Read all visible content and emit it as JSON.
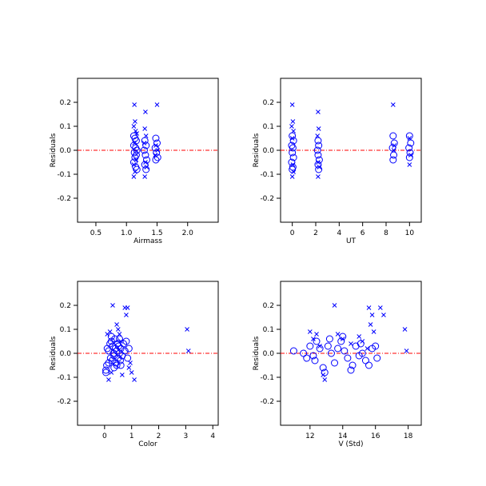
{
  "colors": {
    "marker": "#0000ff",
    "zero_line": "#ff0000",
    "axes": "#000000"
  },
  "chart_data": [
    {
      "type": "scatter",
      "xlabel": "Airmass",
      "ylabel": "Residuals",
      "xlim": [
        0.2,
        2.5
      ],
      "ylim": [
        -0.3,
        0.3
      ],
      "xticks": [
        0.5,
        1.0,
        1.5,
        2.0
      ],
      "xtick_labels": [
        "0.5",
        "1.0",
        "1.5",
        "2.0"
      ],
      "yticks": [
        -0.2,
        -0.1,
        0.0,
        0.1,
        0.2
      ],
      "ytick_labels": [
        "-0.2",
        "-0.1",
        "0.0",
        "0.1",
        "0.2"
      ],
      "zero_line": 0,
      "series": [
        {
          "marker": "circle",
          "points": [
            [
              1.12,
              0.06
            ],
            [
              1.14,
              0.05
            ],
            [
              1.16,
              0.04
            ],
            [
              1.12,
              0.02
            ],
            [
              1.15,
              0.01
            ],
            [
              1.17,
              0.0
            ],
            [
              1.13,
              -0.01
            ],
            [
              1.16,
              -0.02
            ],
            [
              1.14,
              -0.03
            ],
            [
              1.12,
              -0.05
            ],
            [
              1.15,
              -0.07
            ],
            [
              1.17,
              -0.08
            ],
            [
              1.3,
              0.04
            ],
            [
              1.32,
              0.02
            ],
            [
              1.29,
              0.0
            ],
            [
              1.31,
              -0.02
            ],
            [
              1.33,
              -0.04
            ],
            [
              1.3,
              -0.06
            ],
            [
              1.32,
              -0.08
            ],
            [
              1.48,
              0.05
            ],
            [
              1.5,
              0.03
            ],
            [
              1.47,
              0.01
            ],
            [
              1.49,
              -0.01
            ],
            [
              1.51,
              -0.03
            ],
            [
              1.48,
              -0.04
            ]
          ]
        },
        {
          "marker": "x",
          "points": [
            [
              1.13,
              0.19
            ],
            [
              1.14,
              0.12
            ],
            [
              1.12,
              0.1
            ],
            [
              1.15,
              0.08
            ],
            [
              1.17,
              0.07
            ],
            [
              1.13,
              0.03
            ],
            [
              1.16,
              -0.04
            ],
            [
              1.12,
              -0.06
            ],
            [
              1.14,
              -0.09
            ],
            [
              1.12,
              -0.11
            ],
            [
              1.31,
              0.16
            ],
            [
              1.3,
              0.09
            ],
            [
              1.32,
              0.06
            ],
            [
              1.29,
              0.03
            ],
            [
              1.31,
              -0.05
            ],
            [
              1.33,
              -0.07
            ],
            [
              1.3,
              -0.11
            ],
            [
              1.5,
              0.19
            ],
            [
              1.48,
              0.02
            ],
            [
              1.51,
              0.0
            ],
            [
              1.47,
              -0.02
            ]
          ]
        }
      ]
    },
    {
      "type": "scatter",
      "xlabel": "UT",
      "ylabel": "Residuals",
      "xlim": [
        -1,
        11
      ],
      "ylim": [
        -0.3,
        0.3
      ],
      "xticks": [
        0,
        2,
        4,
        6,
        8,
        10
      ],
      "xtick_labels": [
        "0",
        "2",
        "4",
        "6",
        "8",
        "10"
      ],
      "yticks": [
        -0.2,
        -0.1,
        0.0,
        0.1,
        0.2
      ],
      "ytick_labels": [
        "-0.2",
        "-0.1",
        "0.0",
        "0.1",
        "0.2"
      ],
      "zero_line": 0,
      "series": [
        {
          "marker": "circle",
          "points": [
            [
              0.0,
              0.06
            ],
            [
              0.1,
              0.04
            ],
            [
              -0.05,
              0.02
            ],
            [
              0.05,
              0.01
            ],
            [
              0.0,
              -0.01
            ],
            [
              0.1,
              -0.03
            ],
            [
              -0.05,
              -0.05
            ],
            [
              0.05,
              -0.07
            ],
            [
              0.0,
              -0.08
            ],
            [
              2.2,
              0.04
            ],
            [
              2.25,
              0.02
            ],
            [
              2.15,
              0.0
            ],
            [
              2.2,
              -0.02
            ],
            [
              2.3,
              -0.04
            ],
            [
              2.2,
              -0.06
            ],
            [
              2.25,
              -0.08
            ],
            [
              8.6,
              0.06
            ],
            [
              8.7,
              0.03
            ],
            [
              8.55,
              0.01
            ],
            [
              8.65,
              -0.02
            ],
            [
              8.6,
              -0.04
            ],
            [
              10.0,
              0.06
            ],
            [
              10.1,
              0.03
            ],
            [
              9.95,
              0.01
            ],
            [
              10.05,
              -0.01
            ],
            [
              10.0,
              -0.03
            ]
          ]
        },
        {
          "marker": "x",
          "points": [
            [
              0.0,
              0.19
            ],
            [
              0.05,
              0.12
            ],
            [
              -0.05,
              0.1
            ],
            [
              0.1,
              0.08
            ],
            [
              0.0,
              0.05
            ],
            [
              0.05,
              -0.06
            ],
            [
              0.1,
              -0.09
            ],
            [
              0.0,
              -0.11
            ],
            [
              2.2,
              0.16
            ],
            [
              2.25,
              0.09
            ],
            [
              2.15,
              0.06
            ],
            [
              2.2,
              -0.05
            ],
            [
              2.3,
              -0.07
            ],
            [
              2.2,
              -0.11
            ],
            [
              8.6,
              0.19
            ],
            [
              8.7,
              0.02
            ],
            [
              8.65,
              0.0
            ],
            [
              10.0,
              0.05
            ],
            [
              10.1,
              -0.02
            ],
            [
              10.0,
              -0.06
            ]
          ]
        }
      ]
    },
    {
      "type": "scatter",
      "xlabel": "Color",
      "ylabel": "Residuals",
      "xlim": [
        -1,
        4.2
      ],
      "ylim": [
        -0.3,
        0.3
      ],
      "xticks": [
        0,
        1,
        2,
        3,
        4
      ],
      "xtick_labels": [
        "0",
        "1",
        "2",
        "3",
        "4"
      ],
      "yticks": [
        -0.2,
        -0.1,
        0.0,
        0.1,
        0.2
      ],
      "ytick_labels": [
        "-0.2",
        "-0.1",
        "0.0",
        "0.1",
        "0.2"
      ],
      "zero_line": 0,
      "series": [
        {
          "marker": "circle",
          "points": [
            [
              0.05,
              -0.07
            ],
            [
              0.08,
              -0.05
            ],
            [
              0.1,
              0.02
            ],
            [
              0.15,
              0.01
            ],
            [
              0.2,
              0.04
            ],
            [
              0.22,
              -0.02
            ],
            [
              0.25,
              0.05
            ],
            [
              0.28,
              -0.03
            ],
            [
              0.3,
              0.03
            ],
            [
              0.33,
              0.0
            ],
            [
              0.35,
              -0.01
            ],
            [
              0.38,
              0.06
            ],
            [
              0.4,
              0.02
            ],
            [
              0.42,
              -0.04
            ],
            [
              0.45,
              0.01
            ],
            [
              0.48,
              0.04
            ],
            [
              0.5,
              -0.02
            ],
            [
              0.52,
              0.03
            ],
            [
              0.55,
              0.0
            ],
            [
              0.58,
              -0.03
            ],
            [
              0.6,
              0.02
            ],
            [
              0.65,
              -0.01
            ],
            [
              0.7,
              0.04
            ],
            [
              0.75,
              0.01
            ],
            [
              0.8,
              0.05
            ],
            [
              0.85,
              -0.02
            ],
            [
              0.35,
              -0.06
            ],
            [
              0.45,
              -0.05
            ],
            [
              0.25,
              0.07
            ],
            [
              0.55,
              0.06
            ],
            [
              0.15,
              -0.04
            ],
            [
              0.6,
              -0.05
            ],
            [
              0.05,
              -0.08
            ],
            [
              0.9,
              0.02
            ]
          ]
        },
        {
          "marker": "x",
          "points": [
            [
              0.1,
              0.08
            ],
            [
              0.2,
              0.09
            ],
            [
              0.3,
              0.2
            ],
            [
              0.45,
              0.12
            ],
            [
              0.5,
              0.1
            ],
            [
              0.55,
              0.08
            ],
            [
              0.6,
              0.05
            ],
            [
              0.75,
              0.19
            ],
            [
              0.8,
              0.16
            ],
            [
              0.85,
              0.19
            ],
            [
              0.9,
              -0.06
            ],
            [
              1.0,
              -0.08
            ],
            [
              1.1,
              -0.11
            ],
            [
              0.15,
              -0.11
            ],
            [
              0.25,
              -0.08
            ],
            [
              0.65,
              -0.09
            ],
            [
              0.95,
              -0.04
            ],
            [
              3.05,
              0.1
            ],
            [
              3.1,
              0.01
            ]
          ]
        }
      ]
    },
    {
      "type": "scatter",
      "xlabel": "V (Std)",
      "ylabel": "Residuals",
      "xlim": [
        10.2,
        18.8
      ],
      "ylim": [
        -0.3,
        0.3
      ],
      "xticks": [
        12,
        14,
        16,
        18
      ],
      "xtick_labels": [
        "12",
        "14",
        "16",
        "18"
      ],
      "yticks": [
        -0.2,
        -0.1,
        0.0,
        0.1,
        0.2
      ],
      "ytick_labels": [
        "-0.2",
        "-0.1",
        "0.0",
        "0.1",
        "0.2"
      ],
      "zero_line": 0,
      "series": [
        {
          "marker": "circle",
          "points": [
            [
              11.0,
              0.01
            ],
            [
              11.6,
              0.0
            ],
            [
              11.8,
              -0.02
            ],
            [
              12.0,
              0.03
            ],
            [
              12.2,
              -0.01
            ],
            [
              12.4,
              0.05
            ],
            [
              12.6,
              0.02
            ],
            [
              12.8,
              -0.06
            ],
            [
              12.9,
              -0.08
            ],
            [
              13.1,
              0.03
            ],
            [
              13.3,
              0.0
            ],
            [
              13.5,
              -0.04
            ],
            [
              13.7,
              0.02
            ],
            [
              13.9,
              0.05
            ],
            [
              14.1,
              0.01
            ],
            [
              14.3,
              -0.02
            ],
            [
              14.5,
              -0.07
            ],
            [
              14.6,
              -0.05
            ],
            [
              14.8,
              0.03
            ],
            [
              15.0,
              -0.01
            ],
            [
              15.2,
              0.0
            ],
            [
              15.4,
              -0.03
            ],
            [
              15.6,
              -0.05
            ],
            [
              15.8,
              0.02
            ],
            [
              16.0,
              0.03
            ],
            [
              16.1,
              -0.02
            ],
            [
              13.2,
              0.06
            ],
            [
              14.0,
              0.07
            ],
            [
              15.1,
              0.04
            ],
            [
              12.3,
              -0.03
            ]
          ]
        },
        {
          "marker": "x",
          "points": [
            [
              12.0,
              0.09
            ],
            [
              12.2,
              0.06
            ],
            [
              12.4,
              0.08
            ],
            [
              12.6,
              0.03
            ],
            [
              12.8,
              -0.09
            ],
            [
              12.9,
              -0.11
            ],
            [
              13.5,
              0.2
            ],
            [
              13.7,
              0.08
            ],
            [
              14.0,
              0.06
            ],
            [
              14.5,
              0.04
            ],
            [
              15.0,
              0.07
            ],
            [
              15.2,
              0.05
            ],
            [
              15.5,
              0.02
            ],
            [
              15.6,
              0.19
            ],
            [
              15.7,
              0.12
            ],
            [
              15.8,
              0.16
            ],
            [
              15.9,
              0.09
            ],
            [
              16.3,
              0.19
            ],
            [
              16.5,
              0.16
            ],
            [
              17.8,
              0.1
            ],
            [
              17.9,
              0.01
            ]
          ]
        }
      ]
    }
  ]
}
